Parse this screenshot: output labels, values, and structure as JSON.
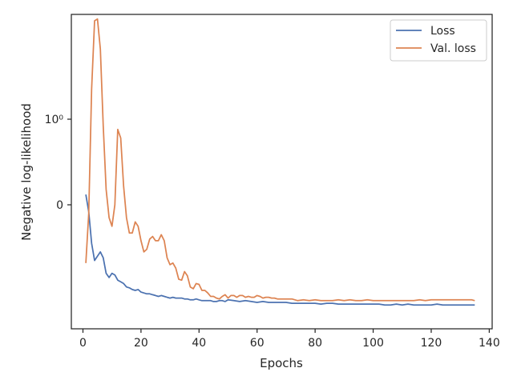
{
  "chart_data": {
    "type": "line",
    "xlabel": "Epochs",
    "ylabel": "Negative log-likelihood",
    "xlim": [
      -4,
      141
    ],
    "xticks": [
      0,
      20,
      40,
      60,
      80,
      100,
      120,
      140
    ],
    "y_scale": "symlog",
    "y_ticks": [
      {
        "value": 1,
        "label": "10⁰"
      },
      {
        "value": 0,
        "label": "0"
      }
    ],
    "grid": false,
    "legend_position": "top-right",
    "colors": {
      "loss": "#4c72b0",
      "val_loss": "#dd8452",
      "axes": "#262626"
    },
    "series": [
      {
        "name": "Loss",
        "x": [
          1,
          2,
          3,
          4,
          5,
          6,
          7,
          8,
          9,
          10,
          11,
          12,
          13,
          14,
          15,
          16,
          17,
          18,
          19,
          20,
          21,
          22,
          23,
          24,
          25,
          26,
          27,
          28,
          29,
          30,
          31,
          32,
          33,
          34,
          35,
          36,
          37,
          38,
          39,
          40,
          41,
          42,
          43,
          44,
          45,
          46,
          47,
          48,
          49,
          50,
          52,
          54,
          56,
          58,
          60,
          62,
          64,
          66,
          68,
          70,
          72,
          74,
          76,
          78,
          80,
          82,
          84,
          86,
          88,
          90,
          92,
          94,
          96,
          98,
          100,
          102,
          104,
          106,
          108,
          110,
          112,
          114,
          116,
          118,
          120,
          122,
          124,
          126,
          128,
          130,
          132,
          134,
          135
        ],
        "y": [
          0.12,
          -0.08,
          -0.45,
          -0.65,
          -0.6,
          -0.55,
          -0.62,
          -0.8,
          -0.85,
          -0.8,
          -0.82,
          -0.88,
          -0.9,
          -0.92,
          -0.96,
          -0.97,
          -0.99,
          -1.0,
          -0.99,
          -1.02,
          -1.03,
          -1.04,
          -1.04,
          -1.05,
          -1.06,
          -1.07,
          -1.06,
          -1.07,
          -1.08,
          -1.09,
          -1.08,
          -1.09,
          -1.09,
          -1.09,
          -1.1,
          -1.1,
          -1.11,
          -1.11,
          -1.1,
          -1.11,
          -1.12,
          -1.12,
          -1.12,
          -1.12,
          -1.13,
          -1.13,
          -1.12,
          -1.12,
          -1.13,
          -1.11,
          -1.12,
          -1.13,
          -1.12,
          -1.13,
          -1.14,
          -1.13,
          -1.14,
          -1.14,
          -1.14,
          -1.14,
          -1.15,
          -1.15,
          -1.15,
          -1.15,
          -1.15,
          -1.16,
          -1.15,
          -1.15,
          -1.16,
          -1.16,
          -1.16,
          -1.16,
          -1.16,
          -1.16,
          -1.16,
          -1.16,
          -1.17,
          -1.17,
          -1.16,
          -1.17,
          -1.16,
          -1.17,
          -1.17,
          -1.17,
          -1.17,
          -1.16,
          -1.17,
          -1.17,
          -1.17,
          -1.17,
          -1.17,
          -1.17,
          -1.17
        ]
      },
      {
        "name": "Val. loss",
        "x": [
          1,
          2,
          3,
          4,
          5,
          6,
          7,
          8,
          9,
          10,
          11,
          12,
          13,
          14,
          15,
          16,
          17,
          18,
          19,
          20,
          21,
          22,
          23,
          24,
          25,
          26,
          27,
          28,
          29,
          30,
          31,
          32,
          33,
          34,
          35,
          36,
          37,
          38,
          39,
          40,
          41,
          42,
          43,
          44,
          45,
          46,
          47,
          48,
          49,
          50,
          51,
          52,
          53,
          54,
          55,
          56,
          57,
          58,
          59,
          60,
          61,
          62,
          63,
          64,
          65,
          66,
          67,
          68,
          70,
          72,
          74,
          76,
          78,
          80,
          82,
          84,
          86,
          88,
          90,
          92,
          94,
          96,
          98,
          100,
          102,
          104,
          106,
          108,
          110,
          112,
          114,
          116,
          118,
          120,
          122,
          124,
          126,
          128,
          130,
          132,
          134,
          135
        ],
        "y": [
          -0.68,
          -0.1,
          1.35,
          2.15,
          2.17,
          1.82,
          0.92,
          0.18,
          -0.15,
          -0.25,
          0.0,
          0.88,
          0.78,
          0.22,
          -0.15,
          -0.33,
          -0.33,
          -0.2,
          -0.25,
          -0.42,
          -0.55,
          -0.52,
          -0.4,
          -0.37,
          -0.42,
          -0.42,
          -0.35,
          -0.42,
          -0.62,
          -0.7,
          -0.68,
          -0.74,
          -0.87,
          -0.88,
          -0.78,
          -0.83,
          -0.96,
          -0.98,
          -0.92,
          -0.93,
          -1.0,
          -1.0,
          -1.03,
          -1.07,
          -1.07,
          -1.09,
          -1.1,
          -1.07,
          -1.05,
          -1.09,
          -1.06,
          -1.06,
          -1.08,
          -1.06,
          -1.06,
          -1.08,
          -1.07,
          -1.08,
          -1.08,
          -1.06,
          -1.07,
          -1.09,
          -1.08,
          -1.08,
          -1.09,
          -1.09,
          -1.1,
          -1.1,
          -1.1,
          -1.1,
          -1.12,
          -1.11,
          -1.12,
          -1.11,
          -1.12,
          -1.12,
          -1.12,
          -1.11,
          -1.12,
          -1.11,
          -1.12,
          -1.12,
          -1.11,
          -1.12,
          -1.12,
          -1.12,
          -1.12,
          -1.12,
          -1.12,
          -1.12,
          -1.12,
          -1.11,
          -1.12,
          -1.11,
          -1.11,
          -1.11,
          -1.11,
          -1.11,
          -1.11,
          -1.11,
          -1.11,
          -1.12
        ]
      }
    ]
  }
}
